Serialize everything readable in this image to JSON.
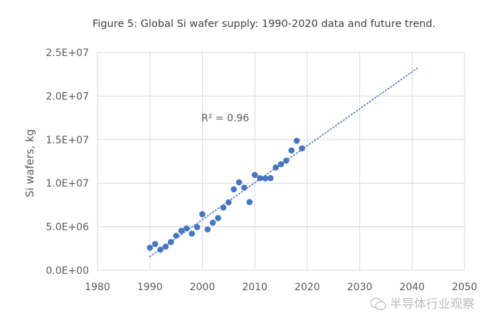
{
  "chart_data": {
    "type": "scatter",
    "title": "Figure 5: Global Si wafer supply: 1990-2020 data and future trend.",
    "xlabel": "",
    "ylabel": "Si wafers, kg",
    "xlim": [
      1980,
      2050
    ],
    "ylim": [
      0,
      25000000
    ],
    "xticks": [
      "1980",
      "1990",
      "2000",
      "2010",
      "2020",
      "2030",
      "2040",
      "2050"
    ],
    "yticks": [
      "0.0E+00",
      "5.0E+06",
      "1.0E+07",
      "1.5E+07",
      "2.0E+07",
      "2.5E+07"
    ],
    "grid": true,
    "marker_color": "#4677BE",
    "x": [
      1990,
      1991,
      1992,
      1993,
      1994,
      1995,
      1996,
      1997,
      1998,
      1999,
      2000,
      2001,
      2002,
      2003,
      2004,
      2005,
      2006,
      2007,
      2008,
      2009,
      2010,
      2011,
      2012,
      2013,
      2014,
      2015,
      2016,
      2017,
      2018,
      2019
    ],
    "y": [
      2590000,
      3020000,
      2370000,
      2720000,
      3240000,
      3970000,
      4540000,
      4810000,
      4210000,
      4950000,
      6440000,
      4700000,
      5460000,
      6000000,
      7200000,
      7800000,
      9300000,
      10100000,
      9490000,
      7830000,
      10950000,
      10580000,
      10550000,
      10580000,
      11800000,
      12180000,
      12590000,
      13760000,
      14870000,
      14000000
    ],
    "trendline": {
      "type": "linear",
      "style": "dotted",
      "x": [
        1990,
        2041
      ],
      "y": [
        1570000,
        23200000
      ]
    },
    "annotation": "R² = 0.96"
  },
  "watermark": "半导体行业观察"
}
